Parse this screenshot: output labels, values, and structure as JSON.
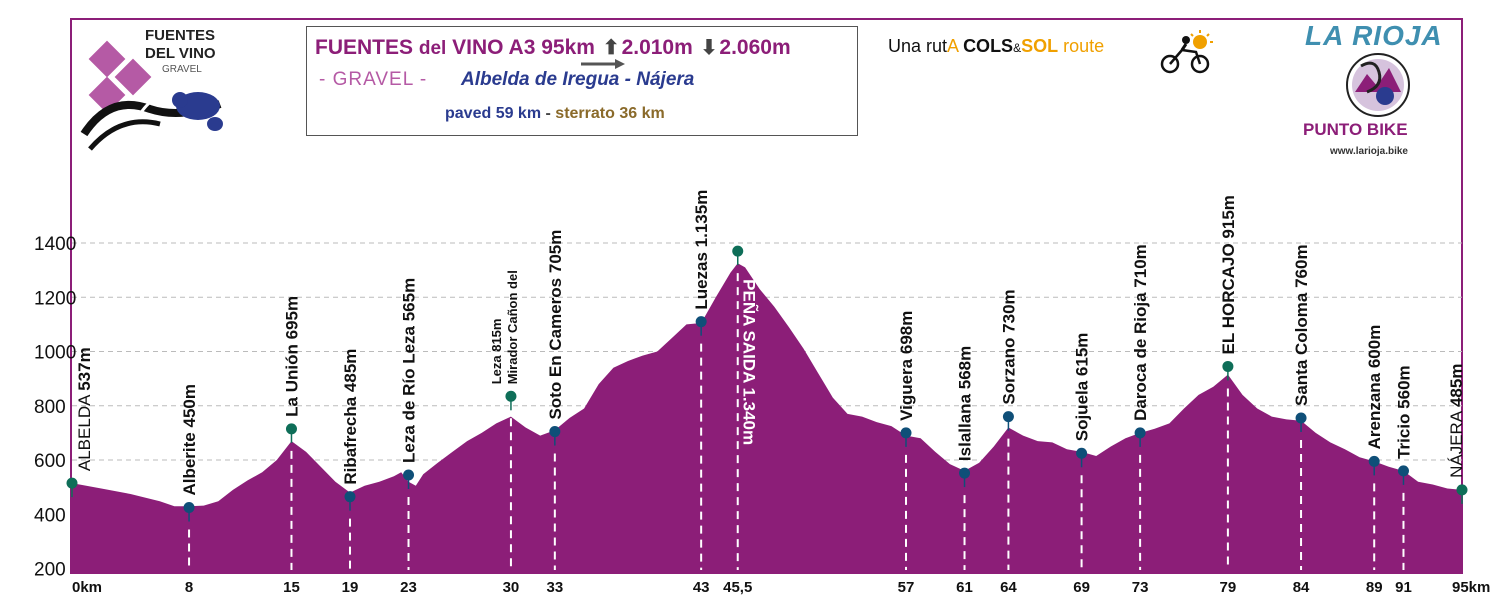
{
  "header": {
    "title_part1": "FUENTES",
    "title_part2": "del",
    "title_part3": "VINO A3 95km",
    "ascent": "2.010m",
    "descent": "2.060m",
    "gravel": "- GRAVEL -",
    "route": "Albelda de Iregua - Nájera",
    "paved": "paved 59 km",
    "separator": "-",
    "sterrato": "sterrato 36 km"
  },
  "logo_fuentes": {
    "line1": "FUENTES",
    "line2": "DEL VINO",
    "line3": "GRAVEL"
  },
  "cols_sol": {
    "una_rut": "Una rut",
    "a": "A",
    "cols": "COLS",
    "amp": "&",
    "sol": "SOL",
    "route": "route"
  },
  "rioja": {
    "title": "LA RIOJA",
    "punto": "PUNTO BIKE",
    "web": "www.larioja.bike"
  },
  "colors": {
    "profile_fill": "#8c1e78",
    "marker_blue": "#0f4f78",
    "marker_green": "#0e6e58",
    "accent_blue": "#2a3b8f"
  },
  "chart_data": {
    "type": "area",
    "xlim": [
      0,
      95
    ],
    "ylim": [
      200,
      1450
    ],
    "yticks": [
      {
        "v": 200,
        "label": "200"
      },
      {
        "v": 400,
        "label": "400"
      },
      {
        "v": 600,
        "label": "600"
      },
      {
        "v": 800,
        "label": "800"
      },
      {
        "v": 1000,
        "label": "1000"
      },
      {
        "v": 1200,
        "label": "1200"
      },
      {
        "v": 1400,
        "label": "1400"
      }
    ],
    "grid_y": [
      600,
      800,
      1000,
      1200,
      1400
    ],
    "profile": [
      [
        0,
        515
      ],
      [
        2,
        495
      ],
      [
        4,
        475
      ],
      [
        6,
        448
      ],
      [
        7,
        430
      ],
      [
        8,
        430
      ],
      [
        9,
        432
      ],
      [
        10,
        448
      ],
      [
        11,
        490
      ],
      [
        12,
        525
      ],
      [
        13,
        555
      ],
      [
        14,
        600
      ],
      [
        15,
        670
      ],
      [
        16,
        630
      ],
      [
        17,
        575
      ],
      [
        18,
        520
      ],
      [
        19,
        480
      ],
      [
        20,
        505
      ],
      [
        21,
        520
      ],
      [
        22,
        540
      ],
      [
        22.5,
        555
      ],
      [
        23,
        520
      ],
      [
        23.5,
        505
      ],
      [
        24,
        548
      ],
      [
        25,
        590
      ],
      [
        26,
        630
      ],
      [
        27,
        670
      ],
      [
        28,
        700
      ],
      [
        29,
        735
      ],
      [
        30,
        760
      ],
      [
        31,
        720
      ],
      [
        32,
        690
      ],
      [
        33,
        710
      ],
      [
        34,
        755
      ],
      [
        35,
        790
      ],
      [
        36,
        880
      ],
      [
        37,
        940
      ],
      [
        38,
        965
      ],
      [
        39,
        985
      ],
      [
        40,
        1000
      ],
      [
        41,
        1050
      ],
      [
        42,
        1100
      ],
      [
        43,
        1105
      ],
      [
        44,
        1200
      ],
      [
        45,
        1290
      ],
      [
        45.5,
        1325
      ],
      [
        46,
        1310
      ],
      [
        47,
        1230
      ],
      [
        48,
        1165
      ],
      [
        49,
        1090
      ],
      [
        50,
        1010
      ],
      [
        51,
        920
      ],
      [
        52,
        830
      ],
      [
        53,
        770
      ],
      [
        54,
        760
      ],
      [
        55,
        740
      ],
      [
        56,
        725
      ],
      [
        57,
        690
      ],
      [
        58,
        680
      ],
      [
        59,
        630
      ],
      [
        60,
        585
      ],
      [
        61,
        560
      ],
      [
        62,
        590
      ],
      [
        63,
        650
      ],
      [
        64,
        720
      ],
      [
        65,
        690
      ],
      [
        66,
        670
      ],
      [
        67,
        665
      ],
      [
        68,
        640
      ],
      [
        69,
        630
      ],
      [
        70,
        615
      ],
      [
        71,
        650
      ],
      [
        72,
        680
      ],
      [
        73,
        700
      ],
      [
        74,
        715
      ],
      [
        75,
        735
      ],
      [
        76,
        790
      ],
      [
        77,
        840
      ],
      [
        78,
        870
      ],
      [
        79,
        915
      ],
      [
        80,
        840
      ],
      [
        81,
        790
      ],
      [
        82,
        760
      ],
      [
        83,
        750
      ],
      [
        84,
        745
      ],
      [
        85,
        700
      ],
      [
        86,
        665
      ],
      [
        87,
        640
      ],
      [
        88,
        610
      ],
      [
        89,
        595
      ],
      [
        90,
        575
      ],
      [
        91,
        560
      ],
      [
        92,
        520
      ],
      [
        93,
        510
      ],
      [
        94,
        495
      ],
      [
        95,
        490
      ]
    ],
    "xticks": [
      {
        "v": 0,
        "label": "0km"
      },
      {
        "v": 8,
        "label": "8"
      },
      {
        "v": 15,
        "label": "15"
      },
      {
        "v": 19,
        "label": "19"
      },
      {
        "v": 23,
        "label": "23"
      },
      {
        "v": 30,
        "label": "30"
      },
      {
        "v": 33,
        "label": "33"
      },
      {
        "v": 43,
        "label": "43"
      },
      {
        "v": 45.5,
        "label": "45,5"
      },
      {
        "v": 57,
        "label": "57"
      },
      {
        "v": 61,
        "label": "61"
      },
      {
        "v": 64,
        "label": "64"
      },
      {
        "v": 69,
        "label": "69"
      },
      {
        "v": 73,
        "label": "73"
      },
      {
        "v": 79,
        "label": "79"
      },
      {
        "v": 84,
        "label": "84"
      },
      {
        "v": 89,
        "label": "89"
      },
      {
        "v": 91,
        "label": "91"
      },
      {
        "v": 95,
        "label": "95km"
      }
    ],
    "waypoints": [
      {
        "km": 0,
        "alt": 515,
        "name": "ALBELDA",
        "elev": "537m",
        "color": "green",
        "dash": false
      },
      {
        "km": 8,
        "alt": 425,
        "name": "Alberite",
        "elev": "450m",
        "color": "blue",
        "dash": true
      },
      {
        "km": 15,
        "alt": 715,
        "name": "La Unión",
        "elev": "695m",
        "color": "green",
        "dash": true
      },
      {
        "km": 19,
        "alt": 465,
        "name": "Ribafrecha",
        "elev": "485m",
        "color": "blue",
        "dash": true
      },
      {
        "km": 23,
        "alt": 545,
        "name": "Leza de Río Leza",
        "elev": "565m",
        "color": "blue",
        "dash": true
      },
      {
        "km": 30,
        "alt": 835,
        "name": "Mirador Cañon del Leza",
        "elev": "815m",
        "color": "green",
        "dash": true
      },
      {
        "km": 33,
        "alt": 705,
        "name": "Soto En Cameros",
        "elev": "705m",
        "color": "blue",
        "dash": true
      },
      {
        "km": 43,
        "alt": 1110,
        "name": "Luezas",
        "elev": "1.135m",
        "color": "blue",
        "dash": true
      },
      {
        "km": 45.5,
        "alt": 1370,
        "name": "PEÑA SAIDA",
        "elev": "1.340m",
        "color": "green",
        "dash": true
      },
      {
        "km": 57,
        "alt": 700,
        "name": "Viguera",
        "elev": "698m",
        "color": "blue",
        "dash": true
      },
      {
        "km": 61,
        "alt": 552,
        "name": "Islallana",
        "elev": "568m",
        "color": "blue",
        "dash": true
      },
      {
        "km": 64,
        "alt": 760,
        "name": "Sorzano",
        "elev": "730m",
        "color": "blue",
        "dash": true
      },
      {
        "km": 69,
        "alt": 625,
        "name": "Sojuela",
        "elev": "615m",
        "color": "blue",
        "dash": true
      },
      {
        "km": 73,
        "alt": 700,
        "name": "Daroca de Rioja",
        "elev": "710m",
        "color": "blue",
        "dash": true
      },
      {
        "km": 79,
        "alt": 945,
        "name": "EL HORCAJO",
        "elev": "915m",
        "color": "green",
        "dash": true
      },
      {
        "km": 84,
        "alt": 755,
        "name": "Santa Coloma",
        "elev": "760m",
        "color": "blue",
        "dash": true
      },
      {
        "km": 89,
        "alt": 595,
        "name": "Arenzana",
        "elev": "600m",
        "color": "blue",
        "dash": true
      },
      {
        "km": 91,
        "alt": 560,
        "name": "Tricio",
        "elev": "560m",
        "color": "blue",
        "dash": true
      },
      {
        "km": 95,
        "alt": 490,
        "name": "NÁJERA",
        "elev": "485m",
        "color": "green",
        "dash": false
      }
    ]
  }
}
